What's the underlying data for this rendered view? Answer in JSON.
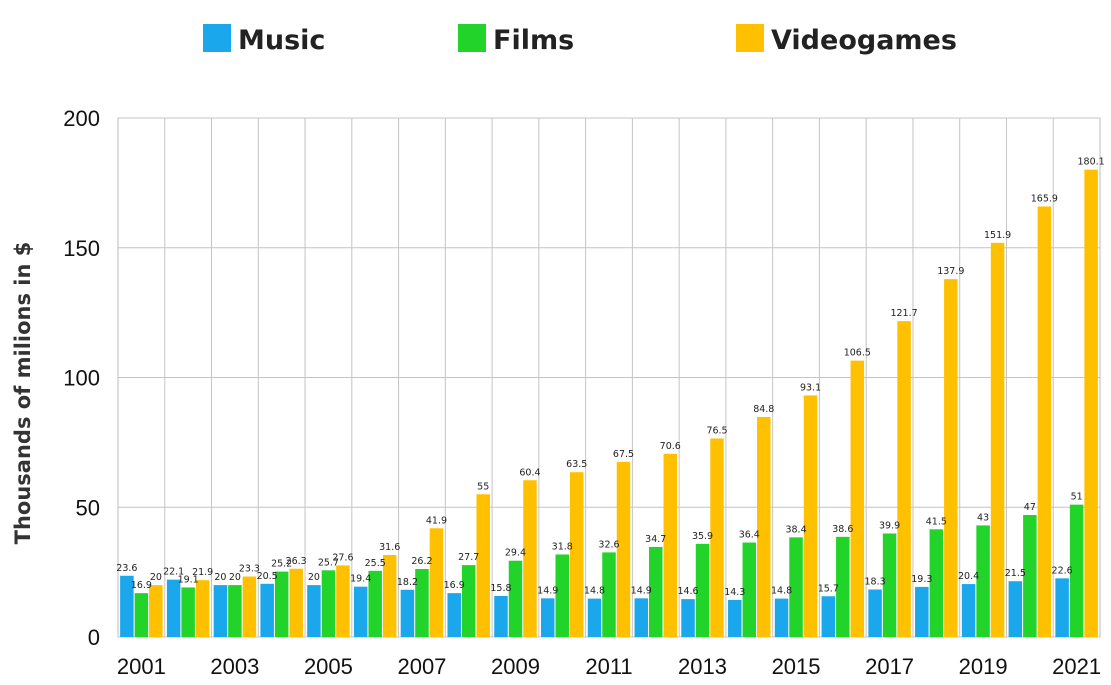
{
  "chart_data": {
    "type": "bar",
    "title": "",
    "xlabel": "",
    "ylabel": "Thousands of milions in $",
    "ylim": [
      0,
      200
    ],
    "yticks": [
      0,
      50,
      100,
      150,
      200
    ],
    "grid": true,
    "legend_position": "top",
    "categories": [
      "2001",
      "2002",
      "2003",
      "2004",
      "2005",
      "2006",
      "2007",
      "2008",
      "2009",
      "2010",
      "2011",
      "2012",
      "2013",
      "2014",
      "2015",
      "2016",
      "2017",
      "2018",
      "2019",
      "2020",
      "2021"
    ],
    "xtick_labels": [
      "2001",
      "2003",
      "2005",
      "2007",
      "2009",
      "2011",
      "2013",
      "2015",
      "2017",
      "2019",
      "2021"
    ],
    "series": [
      {
        "name": "Music",
        "color": "#1aa7ec",
        "values": [
          23.6,
          22.1,
          20,
          20.5,
          20,
          19.4,
          18.2,
          16.9,
          15.8,
          14.9,
          14.8,
          14.9,
          14.6,
          14.3,
          14.8,
          15.7,
          18.3,
          19.3,
          20.4,
          21.5,
          22.6
        ],
        "labels": [
          "23.6",
          "22.1",
          "20",
          "20.5",
          "20",
          "19.4",
          "18.2",
          "16.9",
          "15.8",
          "14.9",
          "14.8",
          "14.9",
          "14.6",
          "14.3",
          "14.8",
          "15.7",
          "18.3",
          "19.3",
          "20.4",
          "21.5",
          "22.6"
        ]
      },
      {
        "name": "Films",
        "color": "#22d32a",
        "values": [
          16.9,
          19.1,
          20,
          25.2,
          25.7,
          25.5,
          26.2,
          27.7,
          29.4,
          31.8,
          32.6,
          34.7,
          35.9,
          36.4,
          38.4,
          38.6,
          39.9,
          41.5,
          43,
          47,
          51
        ],
        "labels": [
          "16.9",
          "19.1",
          "20",
          "25.2",
          "25.7",
          "25.5",
          "26.2",
          "27.7",
          "29.4",
          "31.8",
          "32.6",
          "34.7",
          "35.9",
          "36.4",
          "38.4",
          "38.6",
          "39.9",
          "41.5",
          "43",
          "47",
          "51"
        ]
      },
      {
        "name": "Videogames",
        "color": "#ffc000",
        "values": [
          20,
          21.9,
          23.3,
          26.3,
          27.6,
          31.6,
          41.9,
          55,
          60.4,
          63.5,
          67.5,
          70.6,
          76.5,
          84.8,
          93.1,
          106.5,
          121.7,
          137.9,
          151.9,
          165.9,
          180.1
        ],
        "labels": [
          "20",
          "21.9",
          "23.3",
          "26.3",
          "27.6",
          "31.6",
          "41.9",
          "55",
          "60.4",
          "63.5",
          "67.5",
          "70.6",
          "76.5",
          "84.8",
          "93.1",
          "106.5",
          "121.7",
          "137.9",
          "151.9",
          "165.9",
          "180.1"
        ]
      }
    ]
  }
}
